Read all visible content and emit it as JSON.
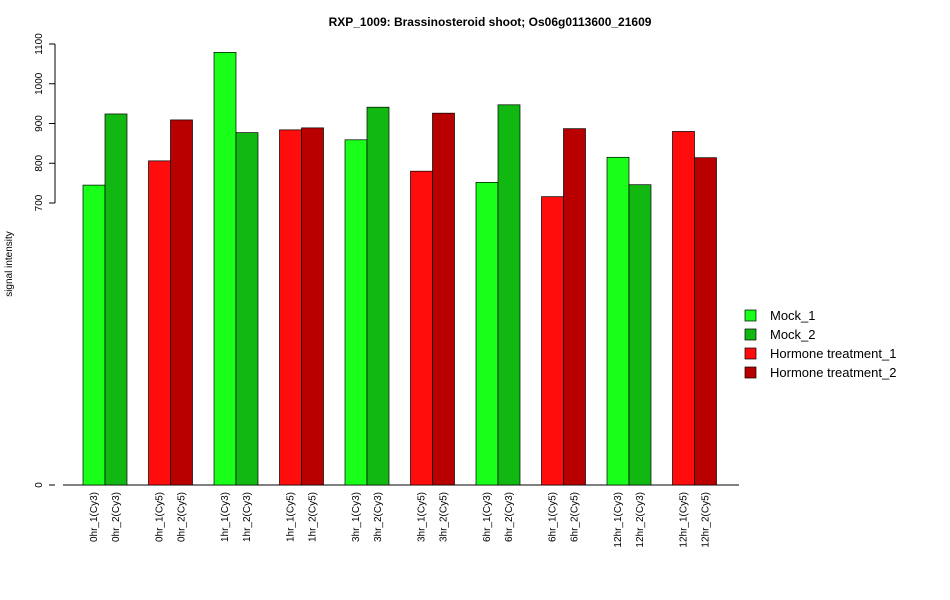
{
  "chart_data": {
    "type": "bar",
    "title": "RXP_1009: Brassinosteroid shoot; Os06g0113600_21609",
    "xlabel": "",
    "ylabel": "signal intensity",
    "ylim": [
      0,
      1100
    ],
    "y_axis_break": true,
    "y_ticks": [
      0,
      700,
      800,
      900,
      1000,
      1100
    ],
    "grid": false,
    "legend_position": "right",
    "series": [
      {
        "name": "Mock_1",
        "color": "#1AFF1A"
      },
      {
        "name": "Mock_2",
        "color": "#12B812"
      },
      {
        "name": "Hormone treatment_1",
        "color": "#FF0D0D"
      },
      {
        "name": "Hormone treatment_2",
        "color": "#B80000"
      }
    ],
    "categories": [
      "0hr_1(Cy3)",
      "0hr_2(Cy3)",
      "0hr_1(Cy5)",
      "0hr_2(Cy5)",
      "1hr_1(Cy3)",
      "1hr_2(Cy3)",
      "1hr_1(Cy5)",
      "1hr_2(Cy5)",
      "3hr_1(Cy3)",
      "3hr_2(Cy3)",
      "3hr_1(Cy5)",
      "3hr_2(Cy5)",
      "6hr_1(Cy3)",
      "6hr_2(Cy3)",
      "6hr_1(Cy5)",
      "6hr_2(Cy5)",
      "12hr_1(Cy3)",
      "12hr_2(Cy3)",
      "12hr_1(Cy5)",
      "12hr_2(Cy5)"
    ],
    "bar_series": [
      0,
      1,
      2,
      3,
      0,
      1,
      2,
      3,
      0,
      1,
      2,
      3,
      0,
      1,
      2,
      3,
      0,
      1,
      2,
      3
    ],
    "values": [
      745,
      924,
      806,
      909,
      1079,
      877,
      884,
      889,
      859,
      941,
      780,
      926,
      752,
      947,
      716,
      887,
      815,
      746,
      880,
      814
    ]
  }
}
